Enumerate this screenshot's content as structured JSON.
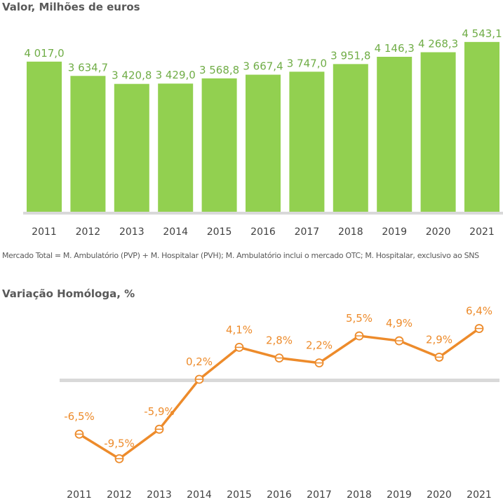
{
  "chart_data": [
    {
      "type": "bar",
      "title": "Valor, Milhões de euros",
      "categories": [
        "2011",
        "2012",
        "2013",
        "2014",
        "2015",
        "2016",
        "2017",
        "2018",
        "2019",
        "2020",
        "2021"
      ],
      "values": [
        4017.0,
        3634.7,
        3420.8,
        3429.0,
        3568.8,
        3667.4,
        3747.0,
        3951.8,
        4146.3,
        4268.3,
        4543.1
      ],
      "data_labels": [
        "4 017,0",
        "3 634,7",
        "3 420,8",
        "3 429,0",
        "3 568,8",
        "3 667,4",
        "3 747,0",
        "3 951,8",
        "4 146,3",
        "4 268,3",
        "4 543,1"
      ],
      "xlabel": "",
      "ylabel": "",
      "color": "#92d050",
      "label_color": "#70ad47",
      "footnote": "Mercado Total =  M. Ambulatório (PVP) + M. Hospitalar (PVH); M. Ambulatório inclui o mercado OTC; M. Hospitalar, exclusivo ao SNS"
    },
    {
      "type": "line",
      "title": "Variação Homóloga, %",
      "categories": [
        "2011",
        "2012",
        "2013",
        "2014",
        "2015",
        "2016",
        "2017",
        "2018",
        "2019",
        "2020",
        "2021"
      ],
      "values": [
        -6.5,
        -9.5,
        -5.9,
        0.2,
        4.1,
        2.8,
        2.2,
        5.5,
        4.9,
        2.9,
        6.4
      ],
      "data_labels": [
        "-6,5%",
        "-9,5%",
        "-5,9%",
        "0,2%",
        "4,1%",
        "2,8%",
        "2,2%",
        "5,5%",
        "4,9%",
        "2,9%",
        "6,4%"
      ],
      "xlabel": "",
      "ylabel": "",
      "color": "#ed8b2b"
    }
  ]
}
